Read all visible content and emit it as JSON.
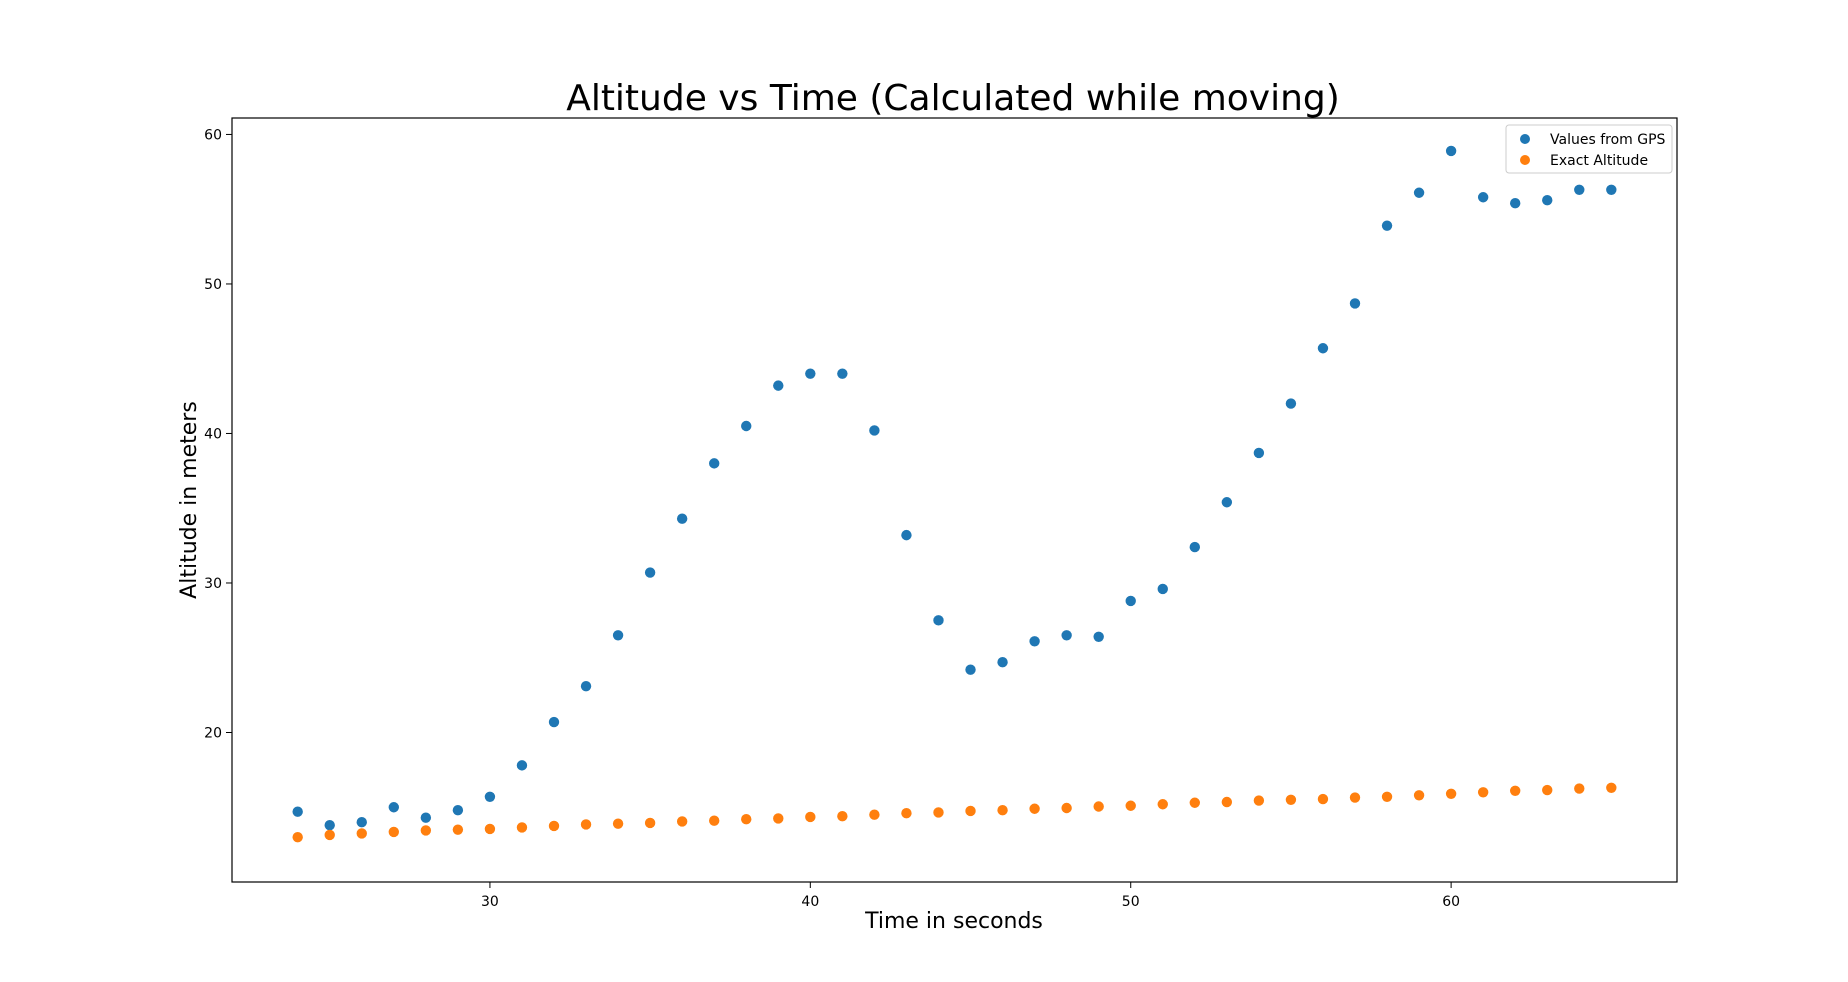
{
  "chart_data": {
    "type": "scatter",
    "title": "Altitude vs Time (Calculated while moving)",
    "xlabel": "Time in seconds",
    "ylabel": "Altitude in meters",
    "xlim": [
      21.95,
      67.05
    ],
    "ylim": [
      10.0,
      61.1
    ],
    "xticks": [
      30,
      40,
      50,
      60
    ],
    "yticks": [
      20,
      30,
      40,
      50,
      60
    ],
    "grid": false,
    "legend_position": "top-right",
    "x": [
      24,
      25,
      26,
      27,
      28,
      29,
      30,
      31,
      32,
      33,
      34,
      35,
      36,
      37,
      38,
      39,
      40,
      41,
      42,
      43,
      44,
      45,
      46,
      47,
      48,
      49,
      50,
      51,
      52,
      53,
      54,
      55,
      56,
      57,
      58,
      59,
      60,
      61,
      62,
      63,
      64,
      65
    ],
    "series": [
      {
        "name": "Values from GPS",
        "color": "#1f77b4",
        "values": [
          14.7,
          13.8,
          14.0,
          15.0,
          14.3,
          14.8,
          15.7,
          17.8,
          20.7,
          23.1,
          26.5,
          30.7,
          34.3,
          38.0,
          40.5,
          43.2,
          44.0,
          44.0,
          40.2,
          33.2,
          27.5,
          24.2,
          24.7,
          26.1,
          26.5,
          26.4,
          28.8,
          29.6,
          32.4,
          35.4,
          38.7,
          42.0,
          45.7,
          48.7,
          53.9,
          56.1,
          58.9,
          55.8,
          55.4,
          55.6,
          56.3,
          56.3
        ]
      },
      {
        "name": "Exact Altitude",
        "color": "#ff7f0e",
        "values": [
          13.0,
          13.15,
          13.25,
          13.35,
          13.45,
          13.5,
          13.55,
          13.65,
          13.75,
          13.85,
          13.9,
          13.95,
          14.05,
          14.1,
          14.2,
          14.25,
          14.35,
          14.4,
          14.5,
          14.6,
          14.65,
          14.75,
          14.8,
          14.9,
          14.95,
          15.05,
          15.1,
          15.2,
          15.3,
          15.35,
          15.45,
          15.5,
          15.55,
          15.65,
          15.7,
          15.8,
          15.9,
          16.0,
          16.1,
          16.15,
          16.25,
          16.3
        ]
      }
    ]
  }
}
